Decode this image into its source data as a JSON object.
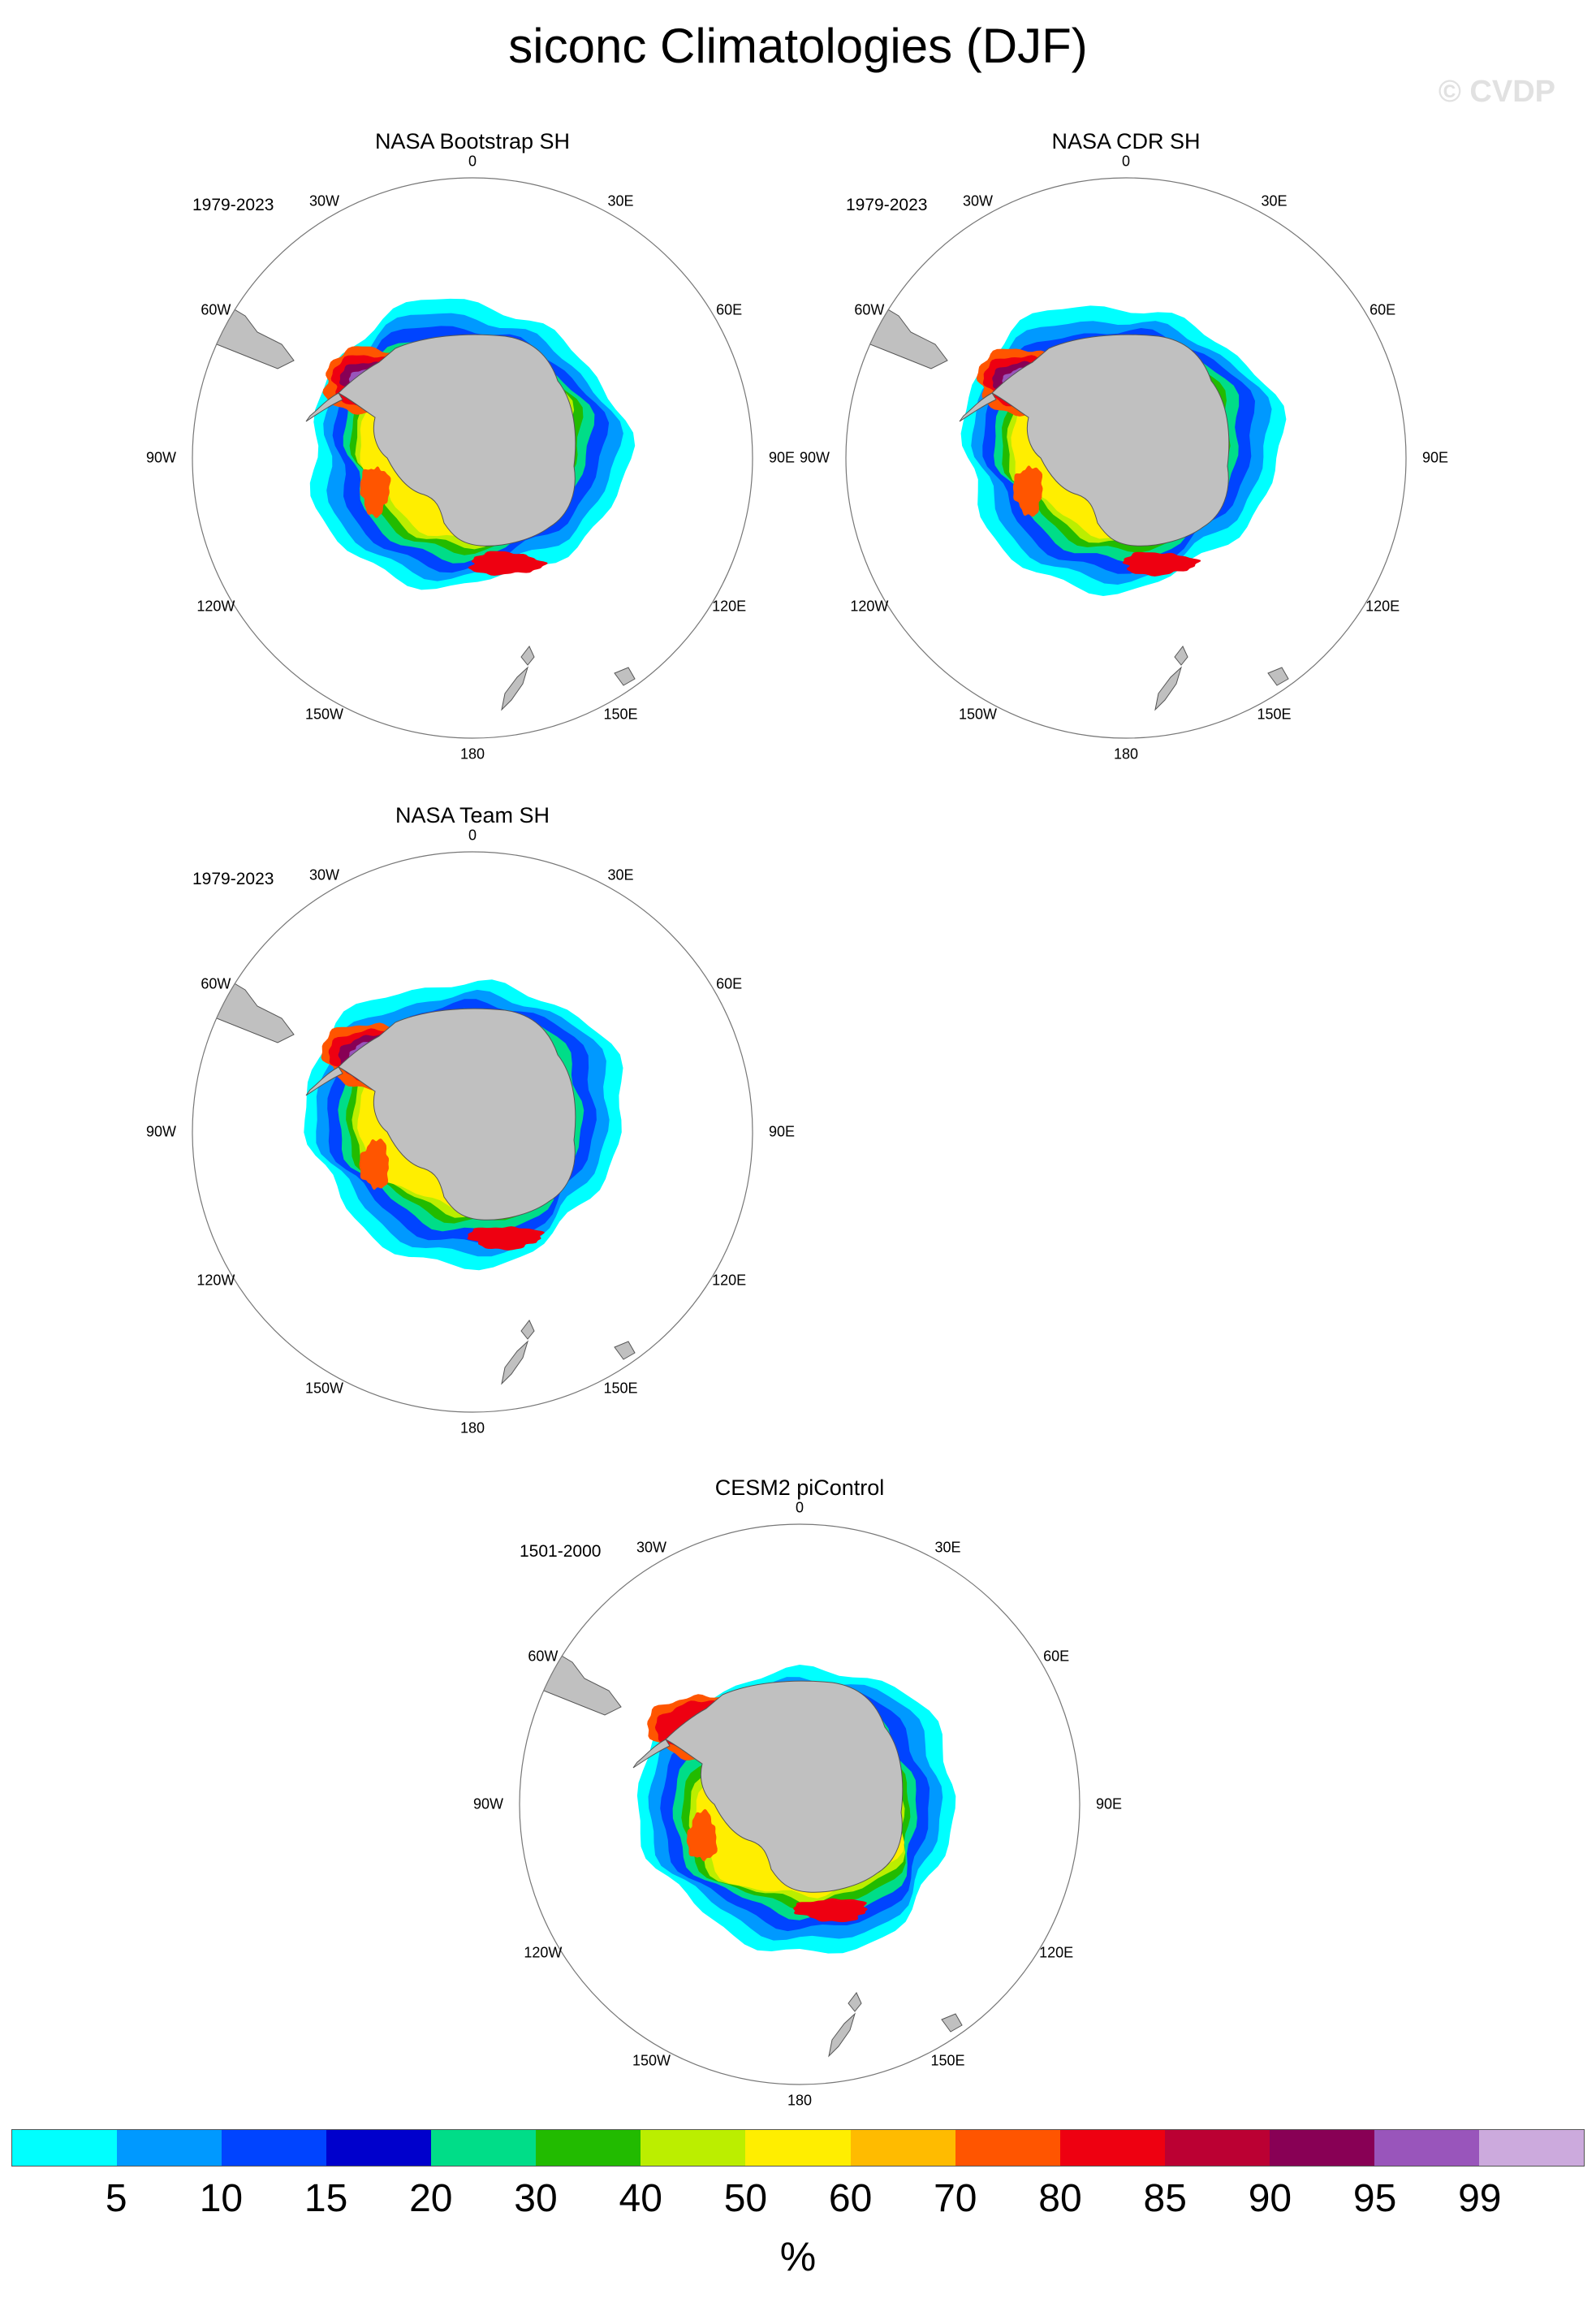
{
  "title": "siconc Climatologies (DJF)",
  "watermark": "© CVDP",
  "lon_labels": [
    "0",
    "30E",
    "60E",
    "90E",
    "120E",
    "150E",
    "180",
    "150W",
    "120W",
    "90W",
    "60W",
    "30W"
  ],
  "colors": {
    "land": "#c0c0c0",
    "ocean": "#ffffff",
    "coast": "#555555"
  },
  "panels": [
    {
      "title": "NASA Bootstrap SH",
      "period": "1979-2023"
    },
    {
      "title": "NASA CDR SH",
      "period": "1979-2023"
    },
    {
      "title": "NASA Team SH",
      "period": "1979-2023"
    },
    {
      "title": "CESM2 piControl",
      "period": "1501-2000"
    }
  ],
  "colorbar": {
    "colors": [
      "#00ffff",
      "#0099ff",
      "#0044ff",
      "#0000cc",
      "#00dd88",
      "#22bb00",
      "#bbee00",
      "#ffee00",
      "#ffbb00",
      "#ff5500",
      "#ee0011",
      "#bb0033",
      "#880055",
      "#9955bb",
      "#ccaadd"
    ],
    "labels": [
      "5",
      "10",
      "15",
      "20",
      "30",
      "40",
      "50",
      "60",
      "70",
      "80",
      "85",
      "90",
      "95",
      "99"
    ],
    "unit": "%"
  }
}
